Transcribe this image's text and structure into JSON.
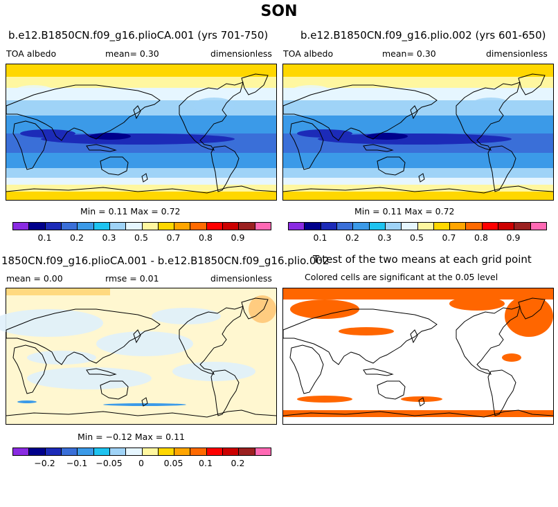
{
  "title": "SON",
  "panels": [
    {
      "title": "b.e12.B1850CN.f09_g16.plioCA.001 (yrs 701-750)",
      "left_label": "TOA albedo",
      "mid_label": "mean=    0.30",
      "right_label": "dimensionless",
      "minmax": "Min =    0.11 Max =    0.72"
    },
    {
      "title": "b.e12.B1850CN.f09_g16.plio.002 (yrs 601-650)",
      "left_label": "TOA albedo",
      "mid_label": "mean=    0.30",
      "right_label": "dimensionless",
      "minmax": "Min =    0.11 Max =    0.72"
    },
    {
      "title": "1850CN.f09_g16.plioCA.001 - b.e12.B1850CN.f09_g16.plio.002",
      "left_label": "mean =    0.00",
      "mid_label": "rmse =    0.01",
      "right_label": "dimensionless",
      "minmax": "Min =  −0.12 Max =    0.11"
    },
    {
      "title": "T-test of the two means at each grid point",
      "subtitle": "Colored cells are significant at the 0.05 level"
    }
  ],
  "colorbar_abs": {
    "colors": [
      "#8a2be2",
      "#00008b",
      "#1c2bb8",
      "#3a6fd8",
      "#3b9ae8",
      "#1ec3f0",
      "#9fd3f7",
      "#e6f6ff",
      "#fff7a0",
      "#ffd700",
      "#ffa500",
      "#ff6a00",
      "#ff0000",
      "#cc0000",
      "#9b2020",
      "#ff69b4"
    ],
    "ticks": [
      "0.1",
      "0.2",
      "0.3",
      "0.5",
      "0.7",
      "0.8",
      "0.9"
    ]
  },
  "colorbar_diff": {
    "colors": [
      "#8a2be2",
      "#00008b",
      "#1c2bb8",
      "#3a6fd8",
      "#3b9ae8",
      "#1ec3f0",
      "#9fd3f7",
      "#e6f6ff",
      "#fff7a0",
      "#ffd700",
      "#ffa500",
      "#ff6a00",
      "#ff0000",
      "#cc0000",
      "#9b2020",
      "#ff69b4"
    ],
    "ticks": [
      "−0.2",
      "−0.1",
      "−0.05",
      "0",
      "0.05",
      "0.1",
      "0.2"
    ]
  },
  "significance_color": "#ff6600"
}
